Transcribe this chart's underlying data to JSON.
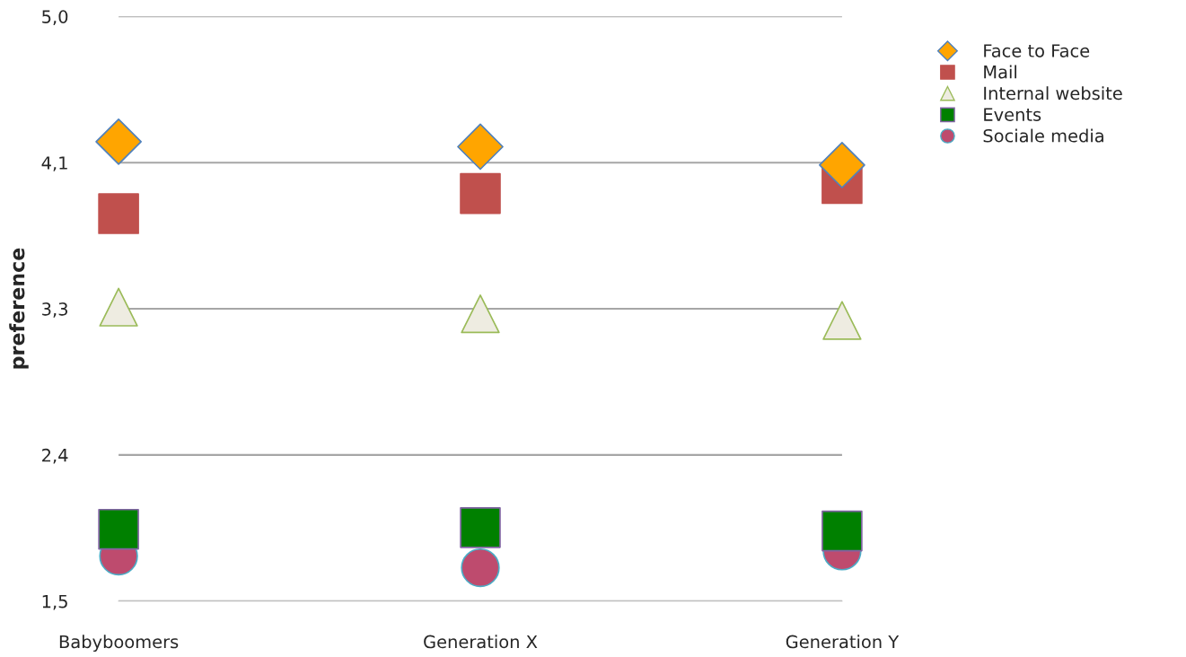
{
  "chart_data": {
    "type": "scatter",
    "ylabel": "preference",
    "categories": [
      "Babyboomers",
      "Generation X",
      "Generation Y"
    ],
    "ylim": [
      1.5,
      5.0
    ],
    "yticks": [
      {
        "value": 1.5,
        "label": "1,5"
      },
      {
        "value": 2.375,
        "label": "2,4"
      },
      {
        "value": 3.25,
        "label": "3,3"
      },
      {
        "value": 4.125,
        "label": "4,1"
      },
      {
        "value": 5.0,
        "label": "5,0"
      }
    ],
    "grid": "y",
    "legend": "top right",
    "series": [
      {
        "name": "Face to Face",
        "color": "#ffa500",
        "marker": "diamond",
        "values": [
          4.25,
          4.22,
          4.11
        ]
      },
      {
        "name": "Mail",
        "color": "#c0504d",
        "marker": "square",
        "values": [
          3.82,
          3.94,
          4.0
        ]
      },
      {
        "name": "Internal website",
        "color": "#eeece1",
        "marker": "triangle",
        "values": [
          3.26,
          3.22,
          3.18
        ]
      },
      {
        "name": "Events",
        "color": "#008000",
        "marker": "square",
        "values": [
          1.93,
          1.94,
          1.92
        ]
      },
      {
        "name": "Sociale media",
        "color": "#be4b6e",
        "marker": "circle",
        "values": [
          1.77,
          1.7,
          1.8
        ]
      }
    ]
  }
}
